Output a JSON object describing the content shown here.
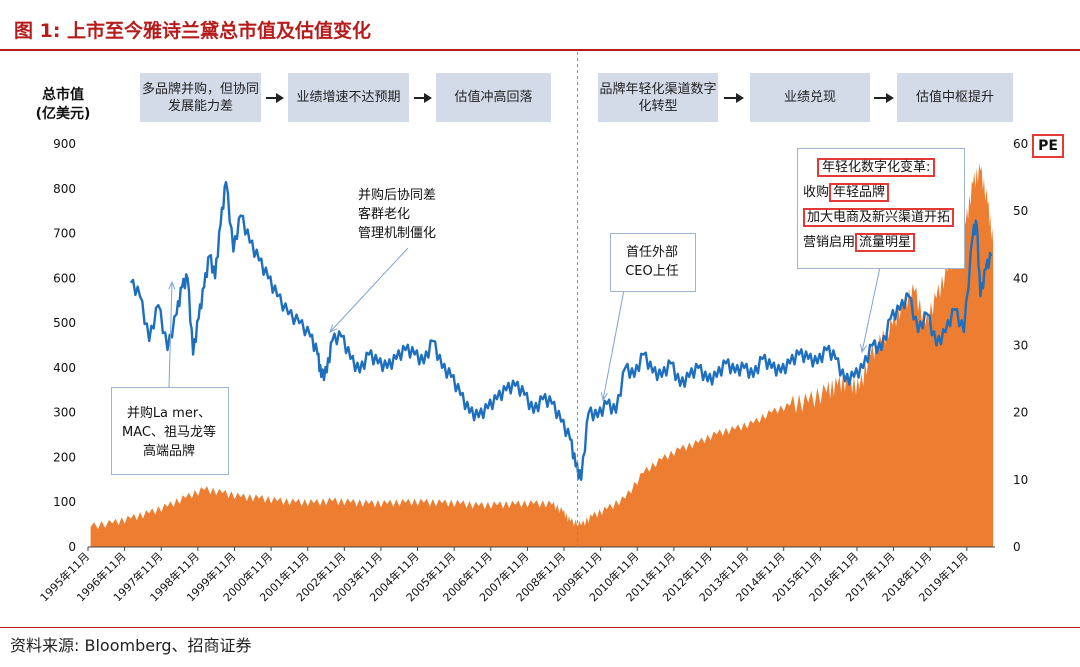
{
  "figure": {
    "title": "图 1:  上市至今雅诗兰黛总市值及估值变化",
    "source": "资料来源:  Bloomberg、招商证券"
  },
  "flow": {
    "left": [
      "多品牌并购，但协同发展能力差",
      "业绩增速不达预期",
      "估值冲高回落"
    ],
    "right": [
      "品牌年轻化渠道数字化转型",
      "业绩兑现",
      "估值中枢提升"
    ]
  },
  "annotations": {
    "acquisition": "并购La mer、MAC、祖马龙等高端品牌",
    "synergy": [
      "并购后协同差",
      "客群老化",
      "管理机制僵化"
    ],
    "ceo": [
      "首任外部",
      "CEO上任"
    ],
    "youth": {
      "heading": "年轻化数字化变革:",
      "line1_prefix": "收购",
      "line1_highlight": "年轻品牌",
      "line2": "加大电商及新兴渠道开拓",
      "line3_prefix": "营销启用",
      "line3_highlight": "流量明星"
    }
  },
  "colors": {
    "market_cap_line": "#1f6fbf",
    "pe_area": "#ed7d31",
    "title": "#b71c1c",
    "flow_box": "#d3dbe8",
    "highlight_box": "#e53935"
  },
  "chart_data": {
    "type": "line",
    "left_axis_title": "总市值\n(亿美元)",
    "right_axis_title": "PE",
    "left_ylim": [
      0,
      900
    ],
    "right_ylim": [
      0,
      60
    ],
    "left_ticks": [
      0,
      100,
      200,
      300,
      400,
      500,
      600,
      700,
      800,
      900
    ],
    "right_ticks": [
      0,
      10,
      20,
      30,
      40,
      50,
      60
    ],
    "x_ticks": [
      "1995年11月",
      "1996年11月",
      "1997年11月",
      "1998年11月",
      "1999年11月",
      "2000年11月",
      "2001年11月",
      "2002年11月",
      "2003年11月",
      "2004年11月",
      "2005年11月",
      "2006年11月",
      "2007年11月",
      "2008年11月",
      "2009年11月",
      "2010年11月",
      "2011年11月",
      "2012年11月",
      "2013年11月",
      "2014年11月",
      "2015年11月",
      "2016年11月",
      "2017年11月",
      "2018年11月",
      "2019年11月"
    ],
    "x_range": [
      1995.83,
      2020.6
    ],
    "divider_x": 2009.2,
    "series": [
      {
        "axis": "left",
        "style": "line",
        "x": [
          1997.0,
          1997.25,
          1997.5,
          1997.75,
          1998.0,
          1998.25,
          1998.4,
          1998.55,
          1998.7,
          1998.85,
          1999.0,
          1999.15,
          1999.3,
          1999.45,
          1999.6,
          1999.8,
          2000.0,
          2000.25,
          2000.5,
          2000.75,
          2001.0,
          2001.3,
          2001.6,
          2001.9,
          2002.1,
          2002.2,
          2002.35,
          2002.5,
          2002.75,
          2003.0,
          2003.25,
          2003.5,
          2003.75,
          2004.0,
          2004.25,
          2004.5,
          2004.75,
          2005.0,
          2005.25,
          2005.5,
          2005.75,
          2006.0,
          2006.25,
          2006.5,
          2006.75,
          2007.0,
          2007.25,
          2007.5,
          2007.75,
          2008.0,
          2008.25,
          2008.5,
          2008.75,
          2009.0,
          2009.15,
          2009.3,
          2009.5,
          2009.75,
          2010.0,
          2010.25,
          2010.5,
          2010.75,
          2011.0,
          2011.25,
          2011.5,
          2011.75,
          2012.0,
          2012.25,
          2012.5,
          2012.75,
          2013.0,
          2013.25,
          2013.5,
          2013.75,
          2014.0,
          2014.25,
          2014.5,
          2014.75,
          2015.0,
          2015.25,
          2015.5,
          2015.75,
          2016.0,
          2016.25,
          2016.5,
          2016.75,
          2017.0,
          2017.25,
          2017.5,
          2017.75,
          2018.0,
          2018.25,
          2018.5,
          2018.75,
          2019.0,
          2019.25,
          2019.5,
          2019.75,
          2020.0,
          2020.1,
          2020.2,
          2020.35,
          2020.5
        ],
        "y": [
          590,
          560,
          460,
          540,
          440,
          520,
          580,
          600,
          430,
          510,
          580,
          650,
          600,
          720,
          815,
          660,
          740,
          680,
          640,
          600,
          560,
          520,
          500,
          470,
          430,
          380,
          390,
          460,
          470,
          420,
          390,
          430,
          410,
          400,
          420,
          440,
          430,
          410,
          460,
          400,
          380,
          340,
          300,
          290,
          310,
          330,
          350,
          360,
          340,
          300,
          330,
          320,
          280,
          240,
          180,
          150,
          300,
          290,
          320,
          300,
          400,
          380,
          430,
          390,
          380,
          410,
          360,
          380,
          400,
          370,
          380,
          410,
          390,
          400,
          380,
          420,
          400,
          390,
          410,
          430,
          420,
          410,
          440,
          420,
          370,
          380,
          400,
          450,
          440,
          510,
          530,
          560,
          480,
          520,
          450,
          480,
          530,
          480,
          700,
          720,
          560,
          620,
          650
        ]
      },
      {
        "axis": "right",
        "style": "area",
        "x": [
          1995.9,
          1996.5,
          1997.0,
          1997.5,
          1998.0,
          1998.5,
          1999.0,
          1999.5,
          2000.0,
          2000.5,
          2001.0,
          2001.5,
          2002.0,
          2002.5,
          2003.0,
          2003.5,
          2004.0,
          2004.5,
          2005.0,
          2005.5,
          2006.0,
          2006.5,
          2007.0,
          2007.5,
          2008.0,
          2008.5,
          2008.8,
          2009.0,
          2009.3,
          2009.6,
          2010.0,
          2010.5,
          2011.0,
          2011.5,
          2012.0,
          2012.5,
          2013.0,
          2013.5,
          2014.0,
          2014.5,
          2015.0,
          2015.5,
          2016.0,
          2016.3,
          2016.6,
          2016.9,
          2017.2,
          2017.5,
          2017.8,
          2018.1,
          2018.4,
          2018.7,
          2019.0,
          2019.3,
          2019.6,
          2019.8,
          2020.0,
          2020.2,
          2020.4,
          2020.55
        ],
        "y": [
          3.0,
          3.5,
          4.2,
          5.0,
          6.0,
          7.3,
          8.5,
          8.0,
          7.4,
          7.2,
          6.8,
          6.6,
          6.5,
          6.8,
          6.6,
          6.4,
          6.4,
          6.6,
          6.6,
          6.5,
          6.4,
          6.1,
          6.2,
          6.3,
          6.4,
          6.3,
          5.2,
          3.8,
          3.2,
          4.5,
          5.6,
          7.2,
          11.0,
          13.0,
          14.5,
          15.5,
          16.8,
          17.5,
          18.4,
          20.0,
          21.0,
          21.5,
          23.0,
          24.0,
          24.5,
          23.5,
          28.5,
          30.5,
          33.0,
          36.0,
          38.0,
          33.0,
          37.0,
          41.0,
          45.0,
          48.0,
          54.0,
          56.0,
          51.0,
          45.0
        ]
      }
    ]
  }
}
